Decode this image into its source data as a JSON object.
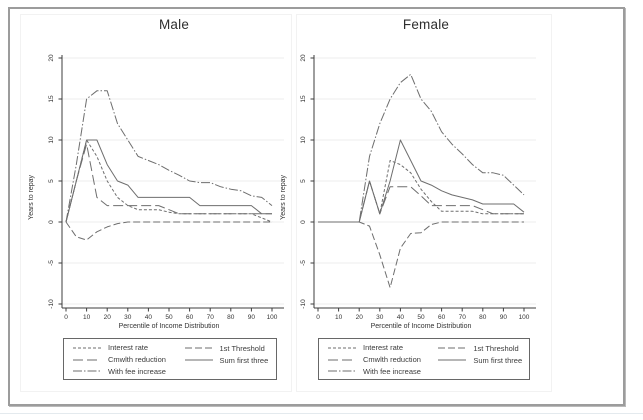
{
  "theme": {
    "line_color": "#6e6e6e",
    "grid_color": "#ededed",
    "axis_color": "#3c3c3c",
    "tick_color": "#333333",
    "title_color": "#2e2e2e",
    "frame_border_color": "#9c9c9c",
    "legend_border_color": "#676767"
  },
  "chart_data": [
    {
      "type": "line",
      "title": "Male",
      "xlabel": "Percentile of Income Distribution",
      "ylabel": "Years to repay",
      "xlim": [
        0,
        100
      ],
      "ylim": [
        -10,
        20
      ],
      "xticks": [
        0,
        10,
        20,
        30,
        40,
        50,
        60,
        70,
        80,
        90,
        100
      ],
      "yticks": [
        -10,
        -5,
        0,
        5,
        10,
        15,
        20
      ],
      "grid": "horizontal",
      "legend_position": "below",
      "draw_order": [
        4,
        1,
        2,
        0,
        3
      ],
      "x": [
        0,
        5,
        10,
        15,
        20,
        25,
        30,
        35,
        40,
        45,
        50,
        55,
        60,
        65,
        70,
        75,
        80,
        85,
        90,
        95,
        100
      ],
      "series": [
        {
          "name": "interest-rate",
          "label": "Interest rate",
          "dash": "3,2",
          "values": [
            0,
            5,
            10,
            8,
            5,
            3,
            2,
            1.5,
            1.5,
            1.5,
            1.2,
            1,
            1,
            1,
            1,
            1,
            1,
            1,
            1,
            0.5,
            0
          ]
        },
        {
          "name": "first-threshold",
          "label": "1st Threshold",
          "dash": "7,3",
          "values": [
            0,
            -1.8,
            -2.2,
            -1.2,
            -0.6,
            -0.2,
            0,
            0,
            0,
            0,
            0,
            0,
            0,
            0,
            0,
            0,
            0,
            0,
            0,
            0,
            0
          ]
        },
        {
          "name": "cmwlth-reduction",
          "label": "Cmwlth reduction",
          "dash": "10,4",
          "values": [
            0,
            5,
            9.5,
            3,
            2,
            2,
            2,
            2,
            2,
            2,
            1.5,
            1,
            1,
            1,
            1,
            1,
            1,
            1,
            1,
            1,
            1
          ]
        },
        {
          "name": "sum-first-three",
          "label": "Sum first three",
          "dash": "",
          "values": [
            0,
            5,
            10,
            10,
            7,
            5,
            4.5,
            3,
            3,
            3,
            3,
            3,
            3,
            2,
            2,
            2,
            2,
            2,
            2,
            1,
            1
          ]
        },
        {
          "name": "with-fee-increase",
          "label": "With fee increase",
          "dash": "9,2,1.5,2",
          "values": [
            0,
            7,
            15,
            16,
            16,
            12,
            10,
            8,
            7.5,
            7,
            6.3,
            5.7,
            5,
            4.8,
            4.8,
            4.3,
            4,
            3.8,
            3.2,
            3,
            2
          ]
        }
      ]
    },
    {
      "type": "line",
      "title": "Female",
      "xlabel": "Percentile of Income Distribution",
      "ylabel": "Years to repay",
      "xlim": [
        0,
        100
      ],
      "ylim": [
        -10,
        20
      ],
      "xticks": [
        0,
        10,
        20,
        30,
        40,
        50,
        60,
        70,
        80,
        90,
        100
      ],
      "yticks": [
        -10,
        -5,
        0,
        5,
        10,
        15,
        20
      ],
      "grid": "horizontal",
      "legend_position": "below",
      "draw_order": [
        4,
        1,
        2,
        0,
        3
      ],
      "x": [
        0,
        5,
        10,
        15,
        20,
        25,
        30,
        35,
        40,
        45,
        50,
        55,
        60,
        65,
        70,
        75,
        80,
        85,
        90,
        95,
        100
      ],
      "series": [
        {
          "name": "interest-rate",
          "label": "Interest rate",
          "dash": "3,2",
          "values": [
            0,
            0,
            0,
            0,
            0,
            5,
            1,
            7.5,
            7,
            6,
            4,
            2.5,
            1.3,
            1.3,
            1.3,
            1.3,
            1,
            1,
            1,
            1,
            1
          ]
        },
        {
          "name": "first-threshold",
          "label": "1st Threshold",
          "dash": "7,3",
          "values": [
            0,
            0,
            0,
            0,
            0,
            -0.5,
            -4,
            -8,
            -3.2,
            -1.4,
            -1.3,
            -0.3,
            0,
            0,
            0,
            0,
            0,
            0,
            0,
            0,
            0
          ]
        },
        {
          "name": "cmwlth-reduction",
          "label": "Cmwlth reduction",
          "dash": "10,4",
          "values": [
            0,
            0,
            0,
            0,
            0,
            5,
            1,
            4.3,
            4.3,
            4.3,
            3.2,
            2,
            2,
            2,
            2,
            2,
            1.5,
            1,
            1,
            1,
            1
          ]
        },
        {
          "name": "sum-first-three",
          "label": "Sum first three",
          "dash": "",
          "values": [
            0,
            0,
            0,
            0,
            0,
            5,
            1,
            5,
            10,
            7.5,
            5,
            4.5,
            3.8,
            3.3,
            3,
            2.7,
            2.2,
            2.2,
            2.2,
            2.2,
            1.2
          ]
        },
        {
          "name": "with-fee-increase",
          "label": "With fee increase",
          "dash": "9,2,1.5,2",
          "values": [
            0,
            0,
            0,
            0,
            0,
            8,
            12,
            15,
            17,
            18,
            15,
            13.5,
            11,
            9.5,
            8.3,
            7,
            6,
            6,
            5.7,
            4.5,
            3.3
          ]
        }
      ]
    }
  ]
}
